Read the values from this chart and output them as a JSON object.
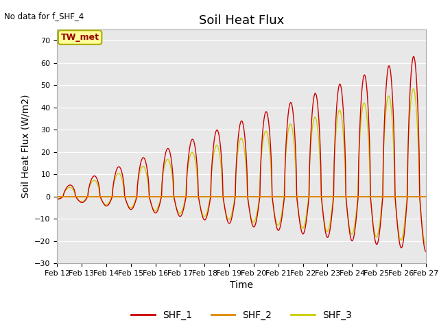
{
  "title": "Soil Heat Flux",
  "ylabel": "Soil Heat Flux (W/m2)",
  "xlabel": "Time",
  "no_data_text": "No data for f_SHF_4",
  "tw_met_label": "TW_met",
  "ylim": [
    -30,
    75
  ],
  "yticks": [
    -30,
    -20,
    -10,
    0,
    10,
    20,
    30,
    40,
    50,
    60,
    70
  ],
  "xtick_labels": [
    "Feb 12",
    "Feb 13",
    "Feb 14",
    "Feb 15",
    "Feb 16",
    "Feb 17",
    "Feb 18",
    "Feb 19",
    "Feb 20",
    "Feb 21",
    "Feb 22",
    "Feb 23",
    "Feb 24",
    "Feb 25",
    "Feb 26",
    "Feb 27"
  ],
  "legend_entries": [
    "SHF_1",
    "SHF_2",
    "SHF_3"
  ],
  "shf1_color": "#cc0000",
  "shf2_color": "#dd8800",
  "shf3_color": "#cccc00",
  "background_color": "#e8e8e8",
  "title_fontsize": 13,
  "axis_label_fontsize": 10,
  "tick_label_fontsize": 8,
  "legend_fontsize": 10,
  "tw_met_color": "#990000"
}
